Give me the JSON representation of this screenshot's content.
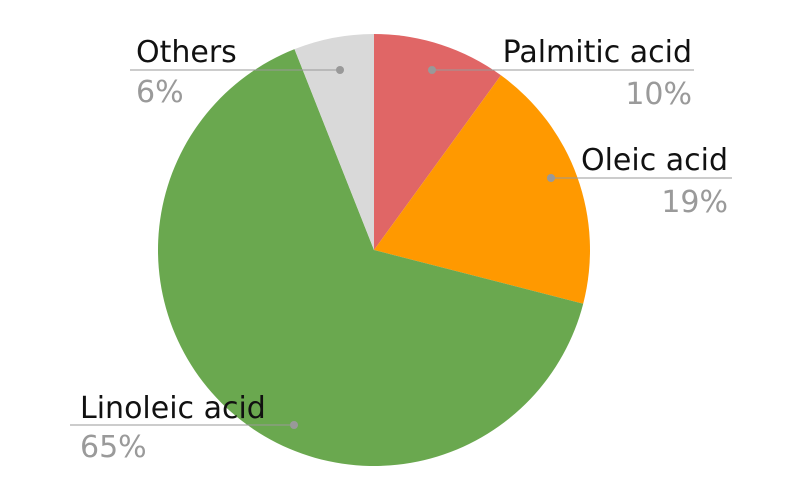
{
  "chart_data": {
    "type": "pie",
    "slices": [
      {
        "label": "Palmitic acid",
        "value": 10,
        "value_label": "10%",
        "color": "#e06666"
      },
      {
        "label": "Oleic acid",
        "value": 19,
        "value_label": "19%",
        "color": "#ff9900"
      },
      {
        "label": "Linoleic acid",
        "value": 65,
        "value_label": "65%",
        "color": "#6aa84f"
      },
      {
        "label": "Others",
        "value": 6,
        "value_label": "6%",
        "color": "#d9d9d9"
      }
    ],
    "start_angle": "12 o'clock",
    "direction": "clockwise",
    "legend": "none",
    "leader_line_color": "#999999",
    "label_color": "#111111",
    "percent_color": "#9a9a9a"
  }
}
